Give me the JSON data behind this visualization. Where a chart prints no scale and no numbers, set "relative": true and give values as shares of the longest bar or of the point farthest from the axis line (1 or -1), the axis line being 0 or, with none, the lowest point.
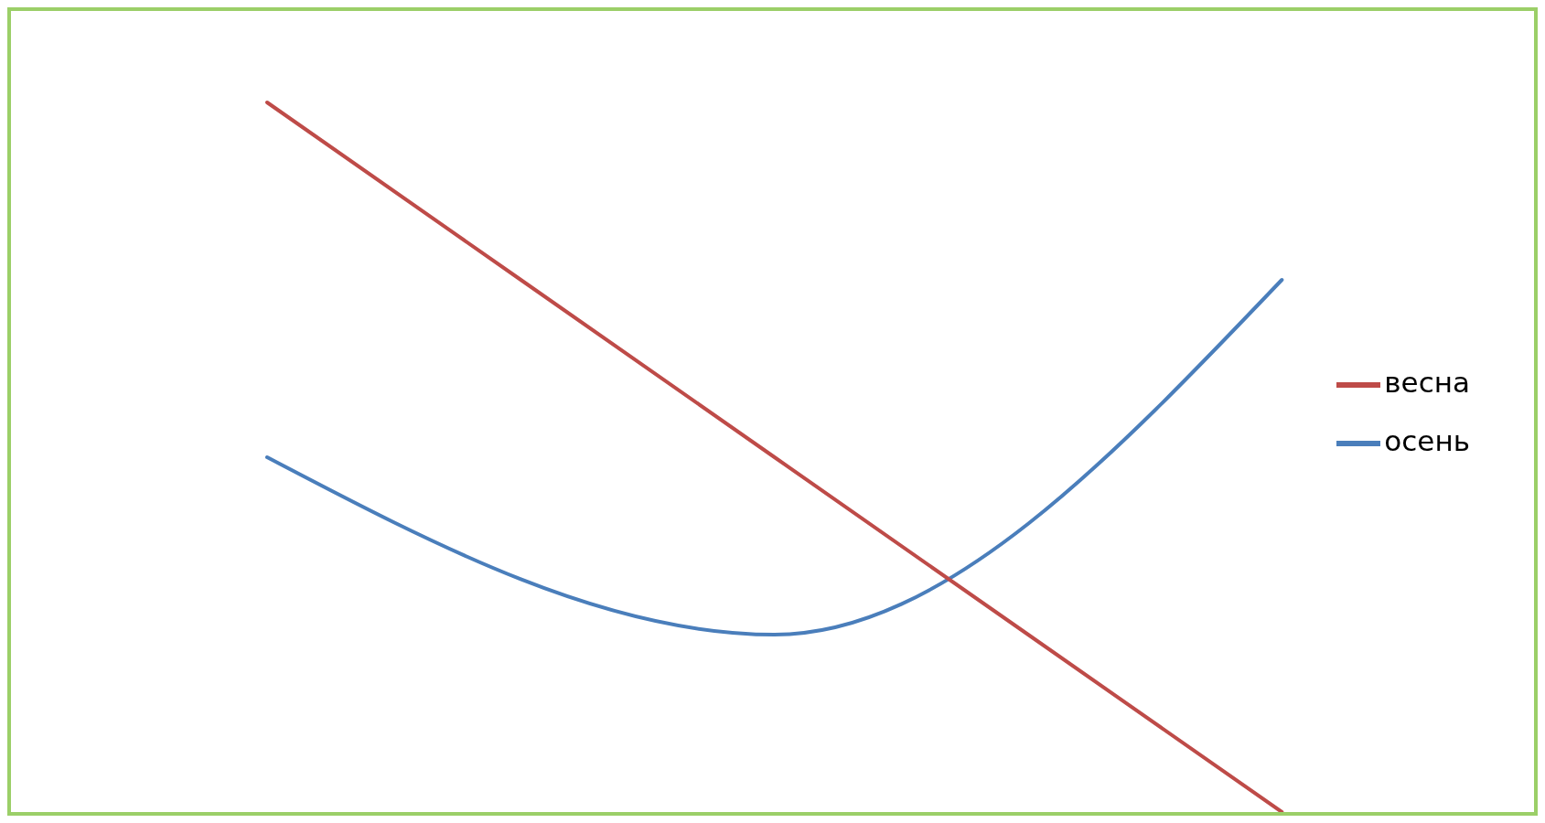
{
  "chart_data": {
    "type": "line",
    "relative": true,
    "categories": [
      null,
      null,
      null
    ],
    "series": [
      {
        "name": "осень",
        "color": "#4a7ebb",
        "values": [
          0.5,
          0.25,
          0.75
        ]
      },
      {
        "name": "весна",
        "color": "#be4b48",
        "values": [
          1,
          0.5,
          0
        ]
      }
    ],
    "legend": "right",
    "grid": false,
    "marker": "none",
    "line_style": "solid"
  }
}
